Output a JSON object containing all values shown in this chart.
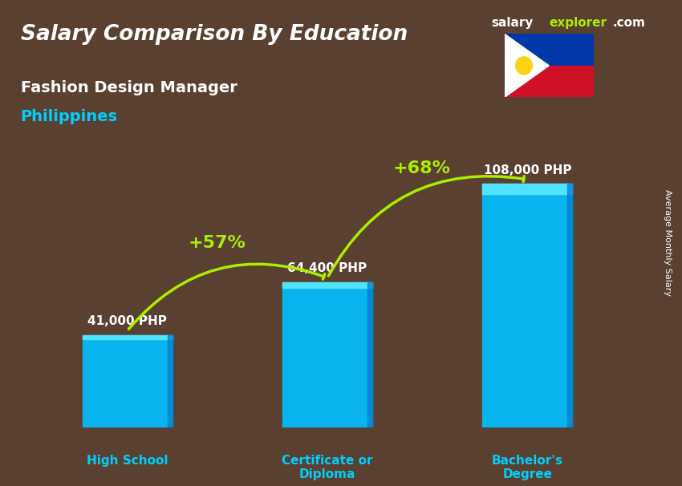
{
  "title": "Salary Comparison By Education",
  "subtitle": "Fashion Design Manager",
  "country": "Philippines",
  "categories": [
    "High School",
    "Certificate or\nDiploma",
    "Bachelor's\nDegree"
  ],
  "values": [
    41000,
    64400,
    108000
  ],
  "value_labels": [
    "41,000 PHP",
    "64,400 PHP",
    "108,000 PHP"
  ],
  "bar_color": "#00BFFF",
  "bar_color_top": "#00D4FF",
  "pct_labels": [
    "+57%",
    "+68%"
  ],
  "pct_color": "#AAEE00",
  "background_color": "#5a4030",
  "title_color": "#FFFFFF",
  "subtitle_color": "#FFFFFF",
  "country_color": "#00CFFF",
  "value_label_color": "#FFFFFF",
  "category_label_color": "#00CFFF",
  "ylabel": "Average Monthly Salary",
  "brand_salary": "salary",
  "brand_explorer": "explorer",
  "brand_com": ".com",
  "ylim": [
    0,
    140000
  ]
}
